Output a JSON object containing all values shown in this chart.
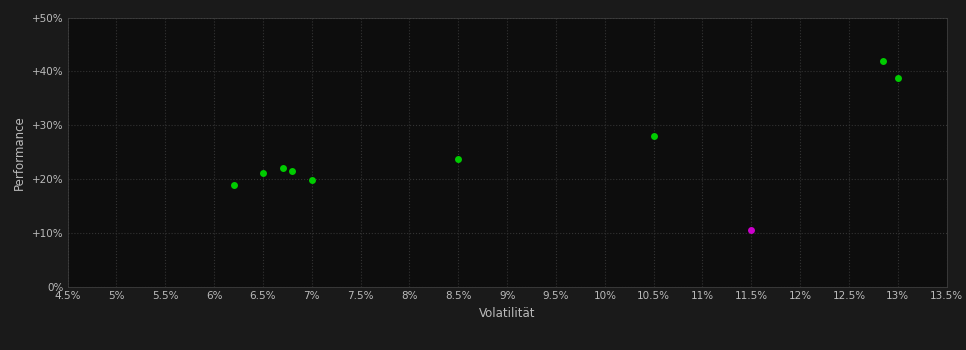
{
  "background_color": "#1a1a1a",
  "plot_bg_color": "#0d0d0d",
  "grid_color": "#333333",
  "green_color": "#00cc00",
  "magenta_color": "#cc00cc",
  "green_points": [
    [
      6.2,
      19.0
    ],
    [
      6.5,
      21.2
    ],
    [
      6.7,
      22.0
    ],
    [
      6.8,
      21.5
    ],
    [
      7.0,
      19.8
    ],
    [
      8.5,
      23.8
    ],
    [
      10.5,
      28.0
    ],
    [
      12.85,
      42.0
    ],
    [
      13.0,
      38.8
    ]
  ],
  "magenta_points": [
    [
      11.5,
      10.5
    ]
  ],
  "xlabel": "Volatilität",
  "ylabel": "Performance",
  "xlim": [
    4.5,
    13.5
  ],
  "ylim": [
    0,
    50
  ],
  "xtick_values": [
    4.5,
    5.0,
    5.5,
    6.0,
    6.5,
    7.0,
    7.5,
    8.0,
    8.5,
    9.0,
    9.5,
    10.0,
    10.5,
    11.0,
    11.5,
    12.0,
    12.5,
    13.0,
    13.5
  ],
  "ytick_values": [
    0,
    10,
    20,
    30,
    40,
    50
  ],
  "ytick_labels": [
    "0%",
    "+10%",
    "+20%",
    "+30%",
    "+40%",
    "+50%"
  ],
  "marker_size": 5,
  "text_color": "#bbbbbb",
  "axis_color": "#444444",
  "figsize": [
    9.66,
    3.5
  ],
  "dpi": 100
}
